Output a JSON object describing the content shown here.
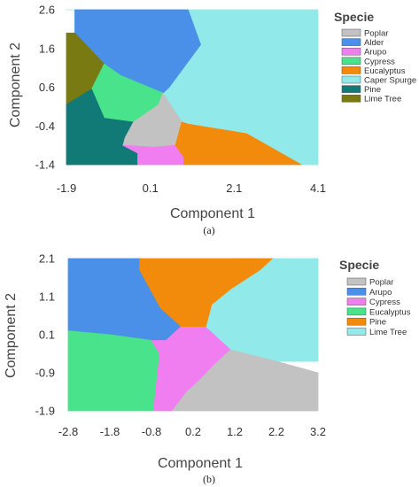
{
  "chart_data": [
    {
      "id": "a",
      "type": "heatmap",
      "caption": "(a)",
      "xlabel": "Component 1",
      "ylabel": "Component 2",
      "xlim": [
        -1.9,
        4.1
      ],
      "ylim": [
        -1.4,
        2.6
      ],
      "x_ticks": [
        "-1.9",
        "0.1",
        "2.1",
        "4.1"
      ],
      "x_tick_values": [
        -1.9,
        0.1,
        2.1,
        4.1
      ],
      "y_ticks": [
        "2.6",
        "1.6",
        "0.6",
        "-0.4",
        "-1.4"
      ],
      "y_tick_values": [
        2.6,
        1.6,
        0.6,
        -0.4,
        -1.4
      ],
      "legend_title": "Specie",
      "legend_position": "right",
      "legend": [
        {
          "name": "Poplar",
          "color": "#c2c2c2"
        },
        {
          "name": "Alder",
          "color": "#4a8fe8"
        },
        {
          "name": "Arupo",
          "color": "#f07ef0"
        },
        {
          "name": "Cypress",
          "color": "#49e38b"
        },
        {
          "name": "Eucalyptus",
          "color": "#f28a0c"
        },
        {
          "name": "Caper Spurge",
          "color": "#92e9e9"
        },
        {
          "name": "Pine",
          "color": "#127a76"
        },
        {
          "name": "Lime Tree",
          "color": "#7a7a12"
        }
      ],
      "regions": [
        {
          "class": "Caper Spurge",
          "polygon": [
            [
              -1.9,
              2.6
            ],
            [
              4.1,
              2.6
            ],
            [
              4.1,
              -1.4
            ],
            [
              3.7,
              -1.4
            ],
            [
              2.4,
              -0.6
            ],
            [
              1.0,
              -0.35
            ],
            [
              0.85,
              -0.3
            ],
            [
              0.4,
              0.45
            ],
            [
              0.55,
              0.6
            ],
            [
              1.3,
              1.7
            ],
            [
              1.0,
              2.6
            ],
            [
              -1.9,
              2.6
            ]
          ]
        },
        {
          "class": "Alder",
          "polygon": [
            [
              -1.7,
              2.6
            ],
            [
              1.0,
              2.6
            ],
            [
              1.3,
              1.7
            ],
            [
              0.55,
              0.6
            ],
            [
              0.4,
              0.45
            ],
            [
              -0.6,
              0.9
            ],
            [
              -1.0,
              1.2
            ],
            [
              -1.7,
              2.0
            ]
          ]
        },
        {
          "class": "Lime Tree",
          "polygon": [
            [
              -1.9,
              2.0
            ],
            [
              -1.7,
              2.0
            ],
            [
              -1.0,
              1.2
            ],
            [
              -1.3,
              0.55
            ],
            [
              -1.9,
              0.15
            ]
          ]
        },
        {
          "class": "Cypress",
          "polygon": [
            [
              -1.0,
              1.2
            ],
            [
              -0.6,
              0.9
            ],
            [
              0.4,
              0.45
            ],
            [
              0.3,
              0.15
            ],
            [
              -0.3,
              -0.3
            ],
            [
              -1.0,
              -0.2
            ],
            [
              -1.3,
              0.55
            ]
          ]
        },
        {
          "class": "Pine",
          "polygon": [
            [
              -1.9,
              0.15
            ],
            [
              -1.3,
              0.55
            ],
            [
              -1.0,
              -0.2
            ],
            [
              -0.3,
              -0.3
            ],
            [
              -0.5,
              -0.7
            ],
            [
              -0.55,
              -0.9
            ],
            [
              -0.2,
              -1.1
            ],
            [
              -0.2,
              -1.4
            ],
            [
              -1.9,
              -1.4
            ]
          ]
        },
        {
          "class": "Poplar",
          "polygon": [
            [
              -0.3,
              -0.3
            ],
            [
              0.3,
              0.15
            ],
            [
              0.4,
              0.45
            ],
            [
              0.85,
              -0.3
            ],
            [
              0.7,
              -0.9
            ],
            [
              0.2,
              -0.95
            ],
            [
              -0.55,
              -0.9
            ],
            [
              -0.5,
              -0.7
            ]
          ]
        },
        {
          "class": "Arupo",
          "polygon": [
            [
              -0.55,
              -0.9
            ],
            [
              0.2,
              -0.95
            ],
            [
              0.7,
              -0.9
            ],
            [
              0.9,
              -1.2
            ],
            [
              0.9,
              -1.4
            ],
            [
              -0.2,
              -1.4
            ],
            [
              -0.2,
              -1.1
            ]
          ]
        },
        {
          "class": "Eucalyptus",
          "polygon": [
            [
              0.85,
              -0.3
            ],
            [
              1.0,
              -0.35
            ],
            [
              2.4,
              -0.6
            ],
            [
              3.7,
              -1.4
            ],
            [
              0.9,
              -1.4
            ],
            [
              0.9,
              -1.2
            ],
            [
              0.7,
              -0.9
            ]
          ]
        }
      ]
    },
    {
      "id": "b",
      "type": "heatmap",
      "caption": "(b)",
      "xlabel": "Component 1",
      "ylabel": "Component 2",
      "xlim": [
        -2.8,
        3.2
      ],
      "ylim": [
        -1.9,
        2.1
      ],
      "x_ticks": [
        "-2.8",
        "-1.8",
        "-0.8",
        "0.2",
        "1.2",
        "2.2",
        "3.2"
      ],
      "x_tick_values": [
        -2.8,
        -1.8,
        -0.8,
        0.2,
        1.2,
        2.2,
        3.2
      ],
      "y_ticks": [
        "2.1",
        "1.1",
        "0.1",
        "-0.9",
        "-1.9"
      ],
      "y_tick_values": [
        2.1,
        1.1,
        0.1,
        -0.9,
        -1.9
      ],
      "legend_title": "Specie",
      "legend_position": "right",
      "legend": [
        {
          "name": "Poplar",
          "color": "#c2c2c2"
        },
        {
          "name": "Arupo",
          "color": "#4a8fe8"
        },
        {
          "name": "Cypress",
          "color": "#f07ef0"
        },
        {
          "name": "Eucalyptus",
          "color": "#49e38b"
        },
        {
          "name": "Pine",
          "color": "#f28a0c"
        },
        {
          "name": "Lime Tree",
          "color": "#92e9e9"
        }
      ],
      "regions": [
        {
          "class": "Lime Tree",
          "polygon": [
            [
              1.2,
              2.1
            ],
            [
              3.2,
              2.1
            ],
            [
              3.2,
              -0.6
            ],
            [
              2.2,
              -0.6
            ],
            [
              1.1,
              -0.3
            ],
            [
              0.8,
              0.0
            ],
            [
              0.5,
              0.3
            ],
            [
              0.85,
              1.5
            ]
          ]
        },
        {
          "class": "Pine",
          "polygon": [
            [
              -1.1,
              2.1
            ],
            [
              2.1,
              2.1
            ],
            [
              1.8,
              1.8
            ],
            [
              1.1,
              1.3
            ],
            [
              0.65,
              0.9
            ],
            [
              0.5,
              0.3
            ],
            [
              -0.1,
              0.3
            ],
            [
              -0.6,
              0.8
            ],
            [
              -1.1,
              1.8
            ]
          ]
        },
        {
          "class": "Arupo",
          "polygon": [
            [
              -2.8,
              2.1
            ],
            [
              -1.1,
              2.1
            ],
            [
              -1.1,
              1.8
            ],
            [
              -0.6,
              0.8
            ],
            [
              -0.1,
              0.3
            ],
            [
              -0.45,
              -0.05
            ],
            [
              -0.8,
              -0.05
            ],
            [
              -1.8,
              0.1
            ],
            [
              -2.8,
              0.2
            ]
          ]
        },
        {
          "class": "Eucalyptus",
          "polygon": [
            [
              -2.8,
              0.2
            ],
            [
              -1.8,
              0.1
            ],
            [
              -0.8,
              -0.05
            ],
            [
              -0.6,
              -0.4
            ],
            [
              -0.75,
              -1.9
            ],
            [
              -2.8,
              -1.9
            ]
          ]
        },
        {
          "class": "Cypress",
          "polygon": [
            [
              -0.45,
              -0.05
            ],
            [
              -0.1,
              0.3
            ],
            [
              0.5,
              0.3
            ],
            [
              0.8,
              0.0
            ],
            [
              1.1,
              -0.3
            ],
            [
              0.7,
              -0.7
            ],
            [
              0.35,
              -1.1
            ],
            [
              0.05,
              -1.4
            ],
            [
              -0.3,
              -1.9
            ],
            [
              -0.75,
              -1.9
            ],
            [
              -0.6,
              -0.4
            ],
            [
              -0.8,
              -0.05
            ]
          ]
        },
        {
          "class": "Poplar",
          "polygon": [
            [
              1.1,
              -0.3
            ],
            [
              2.2,
              -0.6
            ],
            [
              3.2,
              -0.9
            ],
            [
              3.2,
              -1.9
            ],
            [
              -0.3,
              -1.9
            ],
            [
              0.05,
              -1.4
            ],
            [
              0.35,
              -1.1
            ],
            [
              0.7,
              -0.7
            ]
          ]
        }
      ]
    }
  ]
}
